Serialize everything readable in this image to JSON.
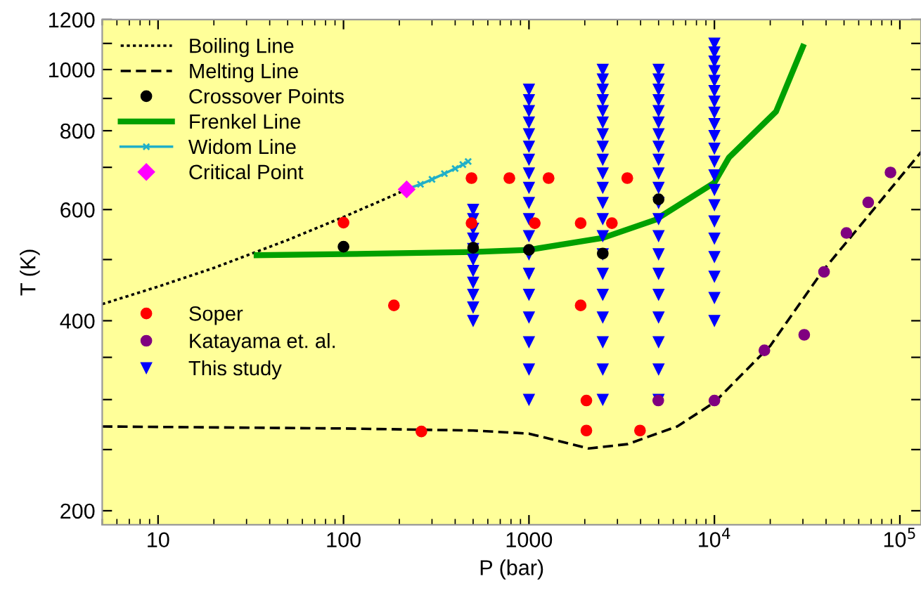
{
  "chart_data": {
    "type": "scatter",
    "xlabel": "P (bar)",
    "ylabel": "T (K)",
    "log": "xy",
    "xlim": [
      5,
      130000
    ],
    "ylim": [
      190,
      1200
    ],
    "xticks": [
      10,
      100,
      1000,
      {
        "value": 10000,
        "label": "10$^{4}$"
      },
      {
        "value": 100000,
        "label": "10$^{5}$"
      }
    ],
    "yticks": [
      200,
      {
        "value": 250,
        "label": null
      },
      {
        "value": 300,
        "label": null
      },
      {
        "value": 350,
        "label": null
      },
      400,
      {
        "value": 500,
        "label": null
      },
      600,
      {
        "value": 700,
        "label": null
      },
      800,
      {
        "value": 900,
        "label": null
      },
      1000,
      {
        "value": 1100,
        "label": null
      },
      1200
    ],
    "legend": "top left",
    "grid": false,
    "series": [
      {
        "name": "Boiling Line",
        "type": "line",
        "line_style": "dotted",
        "marker": "none",
        "color": "#000000",
        "x": [
          5,
          10,
          20,
          50,
          100,
          150,
          219
        ],
        "values": [
          425,
          453,
          485,
          537,
          584,
          615,
          646
        ]
      },
      {
        "name": "Melting Line",
        "type": "line",
        "line_style": "dashed",
        "marker": "none",
        "color": "#000000",
        "x": [
          5,
          100,
          500,
          1000,
          2100,
          3400,
          6300,
          10000,
          20000,
          38000,
          130000
        ],
        "values": [
          272,
          270,
          268,
          265,
          251,
          255,
          272,
          297,
          365,
          478,
          740
        ]
      },
      {
        "name": "Crossover Points",
        "marker": "circle",
        "color": "#000000",
        "x": [
          100,
          500,
          1000,
          2500,
          5000
        ],
        "values": [
          524,
          522,
          518,
          511,
          623
        ]
      },
      {
        "name": "Frenkel Line",
        "type": "line",
        "line_style": "solid",
        "marker": "none",
        "color": "#00a000",
        "x": [
          34,
          100,
          500,
          1000,
          2500,
          4800,
          10000,
          12000,
          21500,
          30000
        ],
        "values": [
          508,
          510,
          514,
          518,
          541,
          578,
          662,
          726,
          858,
          1087
        ]
      },
      {
        "name": "Widom Line",
        "type": "line",
        "line_style": "solid",
        "marker": "cross",
        "color": "#20b0c8",
        "x": [
          220,
          260,
          300,
          350,
          400,
          440,
          470
        ],
        "values": [
          647,
          658,
          670,
          684,
          697,
          707,
          715
        ]
      },
      {
        "name": "Critical Point",
        "marker": "diamond",
        "color": "#ff00ff",
        "x": [
          219
        ],
        "values": [
          646
        ]
      },
      {
        "name": "Soper",
        "marker": "circle",
        "color": "#ff0000",
        "x": [
          100,
          187,
          263,
          490,
          784,
          1276,
          3390,
          490,
          1075,
          1900,
          2800,
          1900,
          2040,
          2040,
          3970
        ],
        "values": [
          572,
          423,
          267,
          673,
          673,
          673,
          673,
          571,
          571,
          571,
          571,
          423,
          299,
          268,
          268
        ]
      },
      {
        "name": "Katayama et. al.",
        "marker": "circle",
        "color": "#800080",
        "x": [
          4980,
          10000,
          18600,
          30500,
          39000,
          51500,
          67500,
          89000
        ],
        "values": [
          299,
          299,
          359,
          380,
          478,
          551,
          616,
          687
        ]
      },
      {
        "name": "This study",
        "marker": "triangle",
        "color": "#0000ff",
        "x": [
          500,
          500,
          500,
          500,
          500,
          500,
          500,
          500,
          500,
          500,
          500,
          1000,
          1000,
          1000,
          1000,
          1000,
          1000,
          1000,
          1000,
          1000,
          1000,
          1000,
          1000,
          1000,
          1000,
          1000,
          1000,
          1000,
          1000,
          1000,
          2500,
          2500,
          2500,
          2500,
          2500,
          2500,
          2500,
          2500,
          2500,
          2500,
          2500,
          2500,
          2500,
          2500,
          2500,
          2500,
          2500,
          2500,
          2500,
          2500,
          2500,
          5000,
          5000,
          5000,
          5000,
          5000,
          5000,
          5000,
          5000,
          5000,
          5000,
          5000,
          5000,
          5000,
          5000,
          5000,
          5000,
          5000,
          5000,
          5000,
          5000,
          5000,
          10000,
          10000,
          10000,
          10000,
          10000,
          10000,
          10000,
          10000,
          10000,
          10000,
          10000,
          10000,
          10000,
          10000,
          10000,
          10000,
          10000,
          10000,
          10000,
          10000,
          10000
        ],
        "values": [
          400,
          420,
          440,
          460,
          480,
          500,
          520,
          540,
          560,
          580,
          600,
          300,
          335,
          370,
          405,
          440,
          475,
          510,
          545,
          580,
          615,
          650,
          685,
          720,
          755,
          790,
          825,
          860,
          895,
          930,
          300,
          335,
          370,
          405,
          440,
          475,
          510,
          545,
          580,
          615,
          650,
          685,
          720,
          755,
          790,
          825,
          860,
          895,
          930,
          965,
          1000,
          300,
          335,
          370,
          405,
          440,
          475,
          510,
          545,
          580,
          615,
          650,
          685,
          720,
          755,
          790,
          825,
          860,
          895,
          930,
          965,
          1000,
          400,
          435,
          470,
          505,
          540,
          575,
          610,
          645,
          680,
          715,
          750,
          785,
          820,
          855,
          890,
          925,
          960,
          995,
          1030,
          1065,
          1100
        ]
      }
    ]
  }
}
